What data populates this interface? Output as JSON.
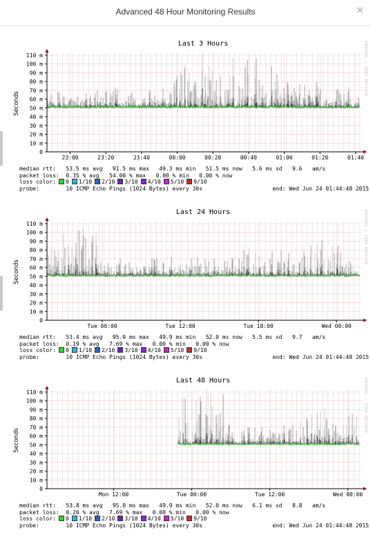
{
  "dialog": {
    "title": "Advanced 48 Hour Monitoring Results",
    "close_label": "×"
  },
  "colors": {
    "median": "#22cc22",
    "plot_bg": "#ffffff",
    "grid_minor": "#e8c8c8",
    "grid_major": "#e39999",
    "arrow": "#990000",
    "smoke_light": "#c8c8c8",
    "smoke_dark": "#333333"
  },
  "loss_colors": [
    {
      "label": "0",
      "color": "#22dd22"
    },
    {
      "label": "1/10",
      "color": "#22bbdd"
    },
    {
      "label": "2/10",
      "color": "#2266dd"
    },
    {
      "label": "3/10",
      "color": "#6622cc"
    },
    {
      "label": "4/10",
      "color": "#8822ee"
    },
    {
      "label": "5/10",
      "color": "#cc22cc"
    },
    {
      "label": "9/10",
      "color": "#dd2222"
    }
  ],
  "panels": [
    {
      "side_text": "RRDTOOL / TOBI OETIKER",
      "chart_data": {
        "type": "line",
        "title": "Last 3 Hours",
        "ylabel": "Seconds",
        "ylim": [
          0,
          110
        ],
        "y_ticks": [
          "0",
          "10 m",
          "20 m",
          "30 m",
          "40 m",
          "50 m",
          "60 m",
          "70 m",
          "80 m",
          "90 m",
          "100 m",
          "110 m"
        ],
        "y_tick_values": [
          0,
          10,
          20,
          30,
          40,
          50,
          60,
          70,
          80,
          90,
          100,
          110
        ],
        "xlim": [
          0,
          175
        ],
        "x_ticks": [
          "23:00",
          "23:20",
          "23:40",
          "00:00",
          "00:20",
          "00:40",
          "01:00",
          "01:20",
          "01:40"
        ],
        "x_tick_values": [
          13,
          33,
          53,
          73,
          93,
          113,
          133,
          153,
          173
        ],
        "data_start": 0,
        "baseline": 51,
        "noise_profile": [
          [
            0,
            0.25
          ],
          [
            70,
            0.35
          ],
          [
            75,
            1.0
          ],
          [
            125,
            0.85
          ],
          [
            135,
            0.5
          ],
          [
            175,
            0.35
          ]
        ],
        "grid": true
      },
      "stats": {
        "median_rtt": "median rtt:   53.5 ms avg   91.5 ms max   49.3 ms min   51.5 ms now   5.6 ms sd   9.6   am/s",
        "packet_loss": "packet loss:  0.35 % avg   54.00 % max   0.00 % min   0.00 % now",
        "loss_color_label": "loss color:",
        "probe": "probe:        10 ICMP Echo Pings (1024 Bytes) every 30s",
        "end": "end: Wed Jun 24 01:44:48 2015"
      }
    },
    {
      "side_text": "RRDTOOL / TOBI OETIKER",
      "chart_data": {
        "type": "line",
        "title": "Last 24 Hours",
        "ylabel": "Seconds",
        "ylim": [
          0,
          110
        ],
        "y_ticks": [
          "0",
          "10 m",
          "20 m",
          "30 m",
          "40 m",
          "50 m",
          "60 m",
          "70 m",
          "80 m",
          "90 m",
          "100 m",
          "110 m"
        ],
        "y_tick_values": [
          0,
          10,
          20,
          30,
          40,
          50,
          60,
          70,
          80,
          90,
          100,
          110
        ],
        "xlim": [
          0,
          24
        ],
        "x_ticks": [
          "Tue 06:00",
          "Tue 12:00",
          "Tue 18:00",
          "Wed 00:00"
        ],
        "x_tick_values": [
          4.25,
          10.25,
          16.25,
          22.25
        ],
        "data_start": 0,
        "baseline": 51,
        "noise_profile": [
          [
            0,
            0.7
          ],
          [
            1,
            1.0
          ],
          [
            3.6,
            1.0
          ],
          [
            4.2,
            0.3
          ],
          [
            14,
            0.35
          ],
          [
            16,
            0.55
          ],
          [
            19,
            0.4
          ],
          [
            21.5,
            0.65
          ],
          [
            24,
            0.6
          ]
        ],
        "grid": true
      },
      "stats": {
        "median_rtt": "median rtt:   53.4 ms avg   95.0 ms max   49.9 ms min   52.0 ms now   5.5 ms sd   9.7   am/s",
        "packet_loss": "packet loss:  0.19 % avg   7.69 % max   0.00 % min   0.00 % now",
        "loss_color_label": "loss color:",
        "probe": "probe:        10 ICMP Echo Pings (1024 Bytes) every 30s",
        "end": "end: Wed Jun 24 01:44:48 2015"
      }
    },
    {
      "side_text": "RRDTOOL / TOBI OETIKER",
      "chart_data": {
        "type": "line",
        "title": "Last 48 Hours",
        "ylabel": "Seconds",
        "ylim": [
          0,
          110
        ],
        "y_ticks": [
          "0",
          "10 m",
          "20 m",
          "30 m",
          "40 m",
          "50 m",
          "60 m",
          "70 m",
          "80 m",
          "90 m",
          "100 m",
          "110 m"
        ],
        "y_tick_values": [
          0,
          10,
          20,
          30,
          40,
          50,
          60,
          70,
          80,
          90,
          100,
          110
        ],
        "xlim": [
          0,
          48
        ],
        "x_ticks": [
          "Mon 12:00",
          "Tue 00:00",
          "Tue 12:00",
          "Wed 00:00"
        ],
        "x_tick_values": [
          10.25,
          22.25,
          34.25,
          46.25
        ],
        "data_start": 20,
        "baseline": 51,
        "noise_profile": [
          [
            20,
            0.8
          ],
          [
            24,
            1.0
          ],
          [
            27,
            1.0
          ],
          [
            28,
            0.35
          ],
          [
            38,
            0.45
          ],
          [
            40,
            0.6
          ],
          [
            45,
            0.65
          ],
          [
            48,
            0.6
          ]
        ],
        "grid": true
      },
      "stats": {
        "median_rtt": "median rtt:   53.8 ms avg   95.0 ms max   49.9 ms min   52.0 ms now   6.1 ms sd   8.8   am/s",
        "packet_loss": "packet loss:  0.20 % avg   7.69 % max   0.00 % min   0.00 % now",
        "loss_color_label": "loss color:",
        "probe": "probe:        10 ICMP Echo Pings (1024 Bytes) every 30s",
        "end": "end: Wed Jun 24 01:44:48 2015"
      }
    }
  ]
}
